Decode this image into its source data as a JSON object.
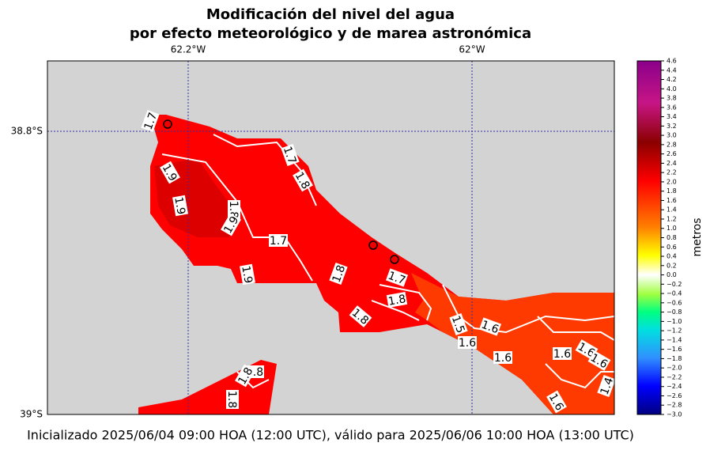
{
  "title": [
    "Modificación del nivel del agua",
    "por efecto meteorológico y de marea astronómica"
  ],
  "map": {
    "x_labels": [
      "62.2°W",
      "62°W"
    ],
    "y_labels": [
      "38.8°S",
      "39°S"
    ],
    "contour_labels": [
      "1.7",
      "1.9",
      "1.7",
      "1.8",
      "1.9",
      "1.8",
      "1.9",
      "1.7",
      "1.9",
      "1.8",
      "1.7",
      "1.8",
      "1.8",
      "1.5",
      "1.6",
      "1.6",
      "1.6",
      "1.6",
      "1.6",
      "1.6",
      "1.4",
      "1.6",
      "1.8",
      "1.8",
      "1.8"
    ]
  },
  "colorbar": {
    "label": "metros",
    "ticks": [
      "4.6",
      "4.4",
      "4.2",
      "4.0",
      "3.8",
      "3.6",
      "3.4",
      "3.2",
      "3.0",
      "2.8",
      "2.6",
      "2.4",
      "2.2",
      "2.0",
      "1.8",
      "1.6",
      "1.4",
      "1.2",
      "1.0",
      "0.8",
      "0.6",
      "0.4",
      "0.2",
      "0.0",
      "−0.2",
      "−0.4",
      "−0.6",
      "−0.8",
      "−1.0",
      "−1.2",
      "−1.4",
      "−1.6",
      "−1.8",
      "−2.0",
      "−2.2",
      "−2.4",
      "−2.6",
      "−2.8",
      "−3.0"
    ]
  },
  "footer": "Inicializado 2025/06/04 09:00 HOA (12:00 UTC), válido para 2025/06/06 10:00 HOA (13:00 UTC)"
}
